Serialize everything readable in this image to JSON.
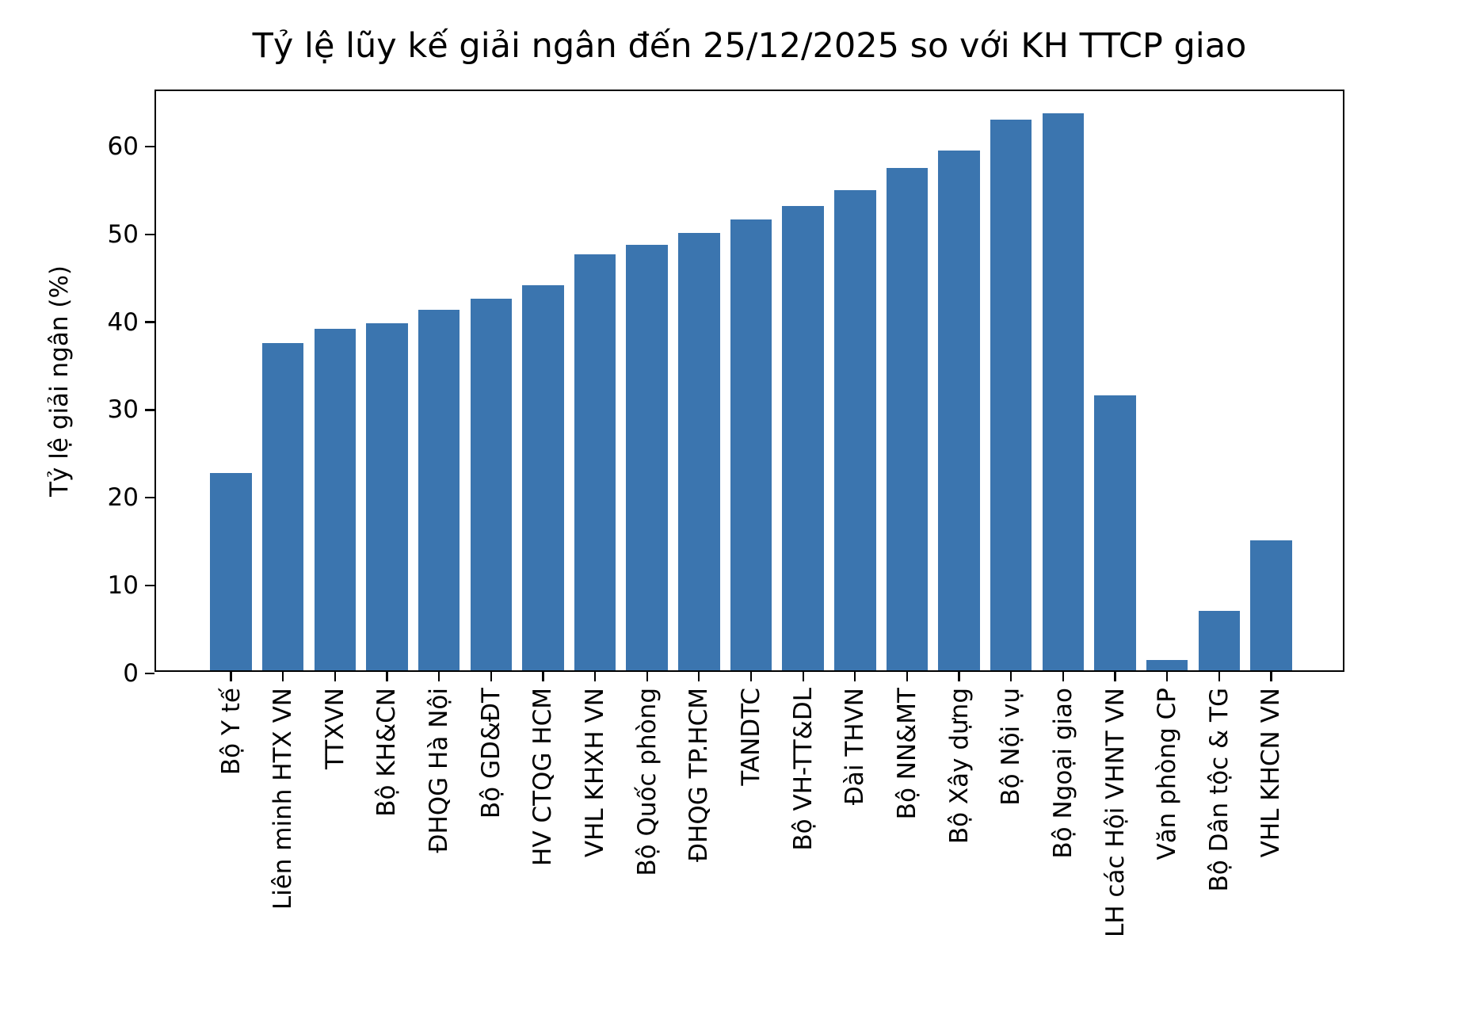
{
  "chart_data": {
    "type": "bar",
    "title": "Tỷ lệ lũy kế giải ngân đến 25/12/2025 so với KH TTCP giao",
    "xlabel": "",
    "ylabel": "Tỷ lệ giải ngân (%)",
    "categories": [
      "Bộ Y tế",
      "Liên minh HTX VN",
      "TTXVN",
      "Bộ KH&CN",
      "ĐHQG Hà Nội",
      "Bộ GD&ĐT",
      "HV CTQG HCM",
      "VHL KHXH VN",
      "Bộ Quốc phòng",
      "ĐHQG TP.HCM",
      "TANDTC",
      "Bộ VH-TT&DL",
      "Đài THVN",
      "Bộ NN&MT",
      "Bộ Xây dựng",
      "Bộ Nội vụ",
      "Bộ Ngoại giao",
      "LH các Hội VHNT VN",
      "Văn phòng CP",
      "Bộ Dân tộc & TG",
      "VHL KHCN VN"
    ],
    "values": [
      22.5,
      37.3,
      38.9,
      39.5,
      41.0,
      42.3,
      43.8,
      47.4,
      48.4,
      49.8,
      51.3,
      52.9,
      54.7,
      57.2,
      59.2,
      62.7,
      63.4,
      31.3,
      1.2,
      6.8,
      14.8
    ],
    "yticks": [
      0,
      10,
      20,
      30,
      40,
      50,
      60
    ],
    "ylim": [
      0,
      66.3
    ],
    "x_tick_rotation_degrees": 90,
    "grid": false,
    "legend": false,
    "bar_color": "#3b75af",
    "axis_color": "#000000",
    "text_color": "#000000",
    "background_color": "#ffffff"
  }
}
